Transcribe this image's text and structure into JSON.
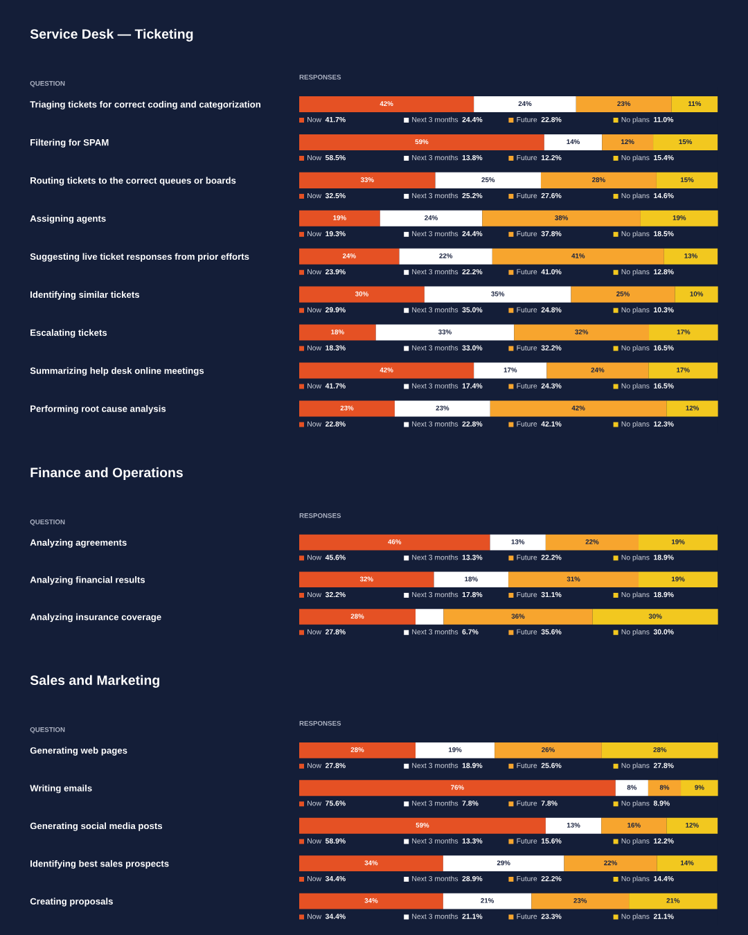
{
  "chart_data": [
    {
      "type": "bar",
      "orientation": "horizontal",
      "stacked": true,
      "title": "Service Desk — Ticketing",
      "xlabel": "RESPONSES",
      "ylabel": "QUESTION",
      "tick_labels": "y",
      "legend": "top left",
      "categories": [
        "Triaging tickets for correct coding and categorization",
        "Filtering for SPAM",
        "Routing tickets to the correct queues or boards",
        "Assigning agents",
        "Suggesting live ticket responses from prior efforts",
        "Identifying similar tickets",
        "Escalating tickets",
        "Summarizing help desk online meetings",
        "Performing root cause analysis"
      ],
      "series": [
        {
          "name": "Now",
          "color": "#e55124",
          "values": [
            41.7,
            58.5,
            32.5,
            19.3,
            23.9,
            29.9,
            18.3,
            41.7,
            22.8
          ],
          "value_labels": [
            "42%",
            "59%",
            "33%",
            "19%",
            "24%",
            "30%",
            "18%",
            "42%",
            "23%"
          ]
        },
        {
          "name": "Next 3 months",
          "color": "#ffffff",
          "values": [
            24.4,
            13.8,
            25.2,
            24.4,
            22.2,
            35.0,
            33.0,
            17.4,
            22.8
          ],
          "value_labels": [
            "24%",
            "14%",
            "25%",
            "24%",
            "22%",
            "35%",
            "33%",
            "17%",
            "23%"
          ]
        },
        {
          "name": "Future",
          "color": "#f7a52e",
          "values": [
            22.8,
            12.2,
            27.6,
            37.8,
            41.0,
            24.8,
            32.2,
            24.3,
            42.1
          ],
          "value_labels": [
            "23%",
            "12%",
            "28%",
            "38%",
            "41%",
            "25%",
            "32%",
            "24%",
            "42%"
          ]
        },
        {
          "name": "No plans",
          "color": "#f2c81f",
          "values": [
            11.0,
            15.4,
            14.6,
            18.5,
            12.8,
            10.3,
            16.5,
            16.5,
            12.3
          ],
          "value_labels": [
            "11%",
            "15%",
            "15%",
            "19%",
            "13%",
            "10%",
            "17%",
            "17%",
            "12%"
          ]
        }
      ],
      "annotations": [
        "41.7%",
        "24.4%",
        "22.8%",
        "11.0%",
        "58.5%",
        "13.8%",
        "12.2%",
        "15.4%",
        "32.5%",
        "25.2%",
        "27.6%",
        "14.6%",
        "19.3%",
        "24.4%",
        "37.8%",
        "18.5%",
        "23.9%",
        "22.2%",
        "41.0%",
        "12.8%",
        "29.9%",
        "35.0%",
        "24.8%",
        "10.3%",
        "18.3%",
        "33.0%",
        "32.2%",
        "16.5%",
        "41.7%",
        "17.4%",
        "24.3%",
        "16.5%",
        "22.8%",
        "22.8%",
        "42.1%",
        "12.3%"
      ]
    },
    {
      "type": "bar",
      "orientation": "horizontal",
      "stacked": true,
      "title": "Finance and Operations",
      "xlabel": "RESPONSES",
      "ylabel": "QUESTION",
      "tick_labels": "y",
      "legend": "top left",
      "categories": [
        "Analyzing agreements",
        "Analyzing financial results",
        "Analyzing insurance coverage"
      ],
      "series": [
        {
          "name": "Now",
          "color": "#e55124",
          "values": [
            45.6,
            32.2,
            27.8
          ],
          "value_labels": [
            "46%",
            "32%",
            "28%"
          ]
        },
        {
          "name": "Next 3 months",
          "color": "#ffffff",
          "values": [
            13.3,
            17.8,
            6.7
          ],
          "value_labels": [
            "13%",
            "18%",
            null
          ]
        },
        {
          "name": "Future",
          "color": "#f7a52e",
          "values": [
            22.2,
            31.1,
            35.6
          ],
          "value_labels": [
            "22%",
            "31%",
            "36%"
          ]
        },
        {
          "name": "No plans",
          "color": "#f2c81f",
          "values": [
            18.9,
            18.9,
            30.0
          ],
          "value_labels": [
            "19%",
            "19%",
            "30%"
          ]
        }
      ],
      "annotations": [
        "45.6%",
        "13.3%",
        "22.2%",
        "18.9%",
        "32.2%",
        "17.8%",
        "31.1%",
        "18.9%",
        "27.8%",
        "6.7%",
        "35.6%",
        "30.0%"
      ]
    },
    {
      "type": "bar",
      "orientation": "horizontal",
      "stacked": true,
      "title": "Sales and Marketing",
      "xlabel": "RESPONSES",
      "ylabel": "QUESTION",
      "tick_labels": "y",
      "legend": "top left",
      "categories": [
        "Generating web pages",
        "Writing emails",
        "Generating social media posts",
        "Identifying best sales prospects",
        "Creating proposals"
      ],
      "series": [
        {
          "name": "Now",
          "color": "#e55124",
          "values": [
            27.8,
            75.6,
            58.9,
            34.4,
            34.4
          ],
          "value_labels": [
            "28%",
            "76%",
            "59%",
            "34%",
            "34%"
          ]
        },
        {
          "name": "Next 3 months",
          "color": "#ffffff",
          "values": [
            18.9,
            7.8,
            13.3,
            28.9,
            21.1
          ],
          "value_labels": [
            "19%",
            "8%",
            "13%",
            "29%",
            "21%"
          ]
        },
        {
          "name": "Future",
          "color": "#f7a52e",
          "values": [
            25.6,
            7.8,
            15.6,
            22.2,
            23.3
          ],
          "value_labels": [
            "26%",
            "8%",
            "16%",
            "22%",
            "23%"
          ]
        },
        {
          "name": "No plans",
          "color": "#f2c81f",
          "values": [
            27.8,
            8.9,
            12.2,
            14.4,
            21.1
          ],
          "value_labels": [
            "28%",
            "9%",
            "12%",
            "14%",
            "21%"
          ]
        }
      ],
      "annotations": [
        "27.8%",
        "18.9%",
        "25.6%",
        "27.8%",
        "75.6%",
        "7.8%",
        "7.8%",
        "8.9%",
        "58.9%",
        "13.3%",
        "15.6%",
        "12.2%",
        "34.4%",
        "28.9%",
        "22.2%",
        "14.4%",
        "34.4%",
        "21.1%",
        "23.3%",
        "21.1%"
      ]
    }
  ]
}
